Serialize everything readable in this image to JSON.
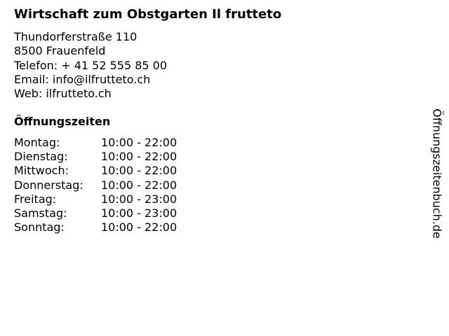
{
  "title": "Wirtschaft zum Obstgarten Il frutteto",
  "address": {
    "street": "Thundorferstraße 110",
    "city": "8500 Frauenfeld",
    "phone": "Telefon: + 41 52 555 85 00",
    "email": "Email: info@ilfrutteto.ch",
    "web": "Web: ilfrutteto.ch"
  },
  "hours_heading": "Öffnungszeiten",
  "hours": [
    {
      "day": "Montag:",
      "time": "10:00 - 22:00"
    },
    {
      "day": "Dienstag:",
      "time": "10:00 - 22:00"
    },
    {
      "day": "Mittwoch:",
      "time": "10:00 - 22:00"
    },
    {
      "day": "Donnerstag:",
      "time": "10:00 - 22:00"
    },
    {
      "day": "Freitag:",
      "time": "10:00 - 23:00"
    },
    {
      "day": "Samstag:",
      "time": "10:00 - 23:00"
    },
    {
      "day": "Sonntag:",
      "time": "10:00 - 22:00"
    }
  ],
  "side_label": "Öffnungszeitenbuch.de"
}
